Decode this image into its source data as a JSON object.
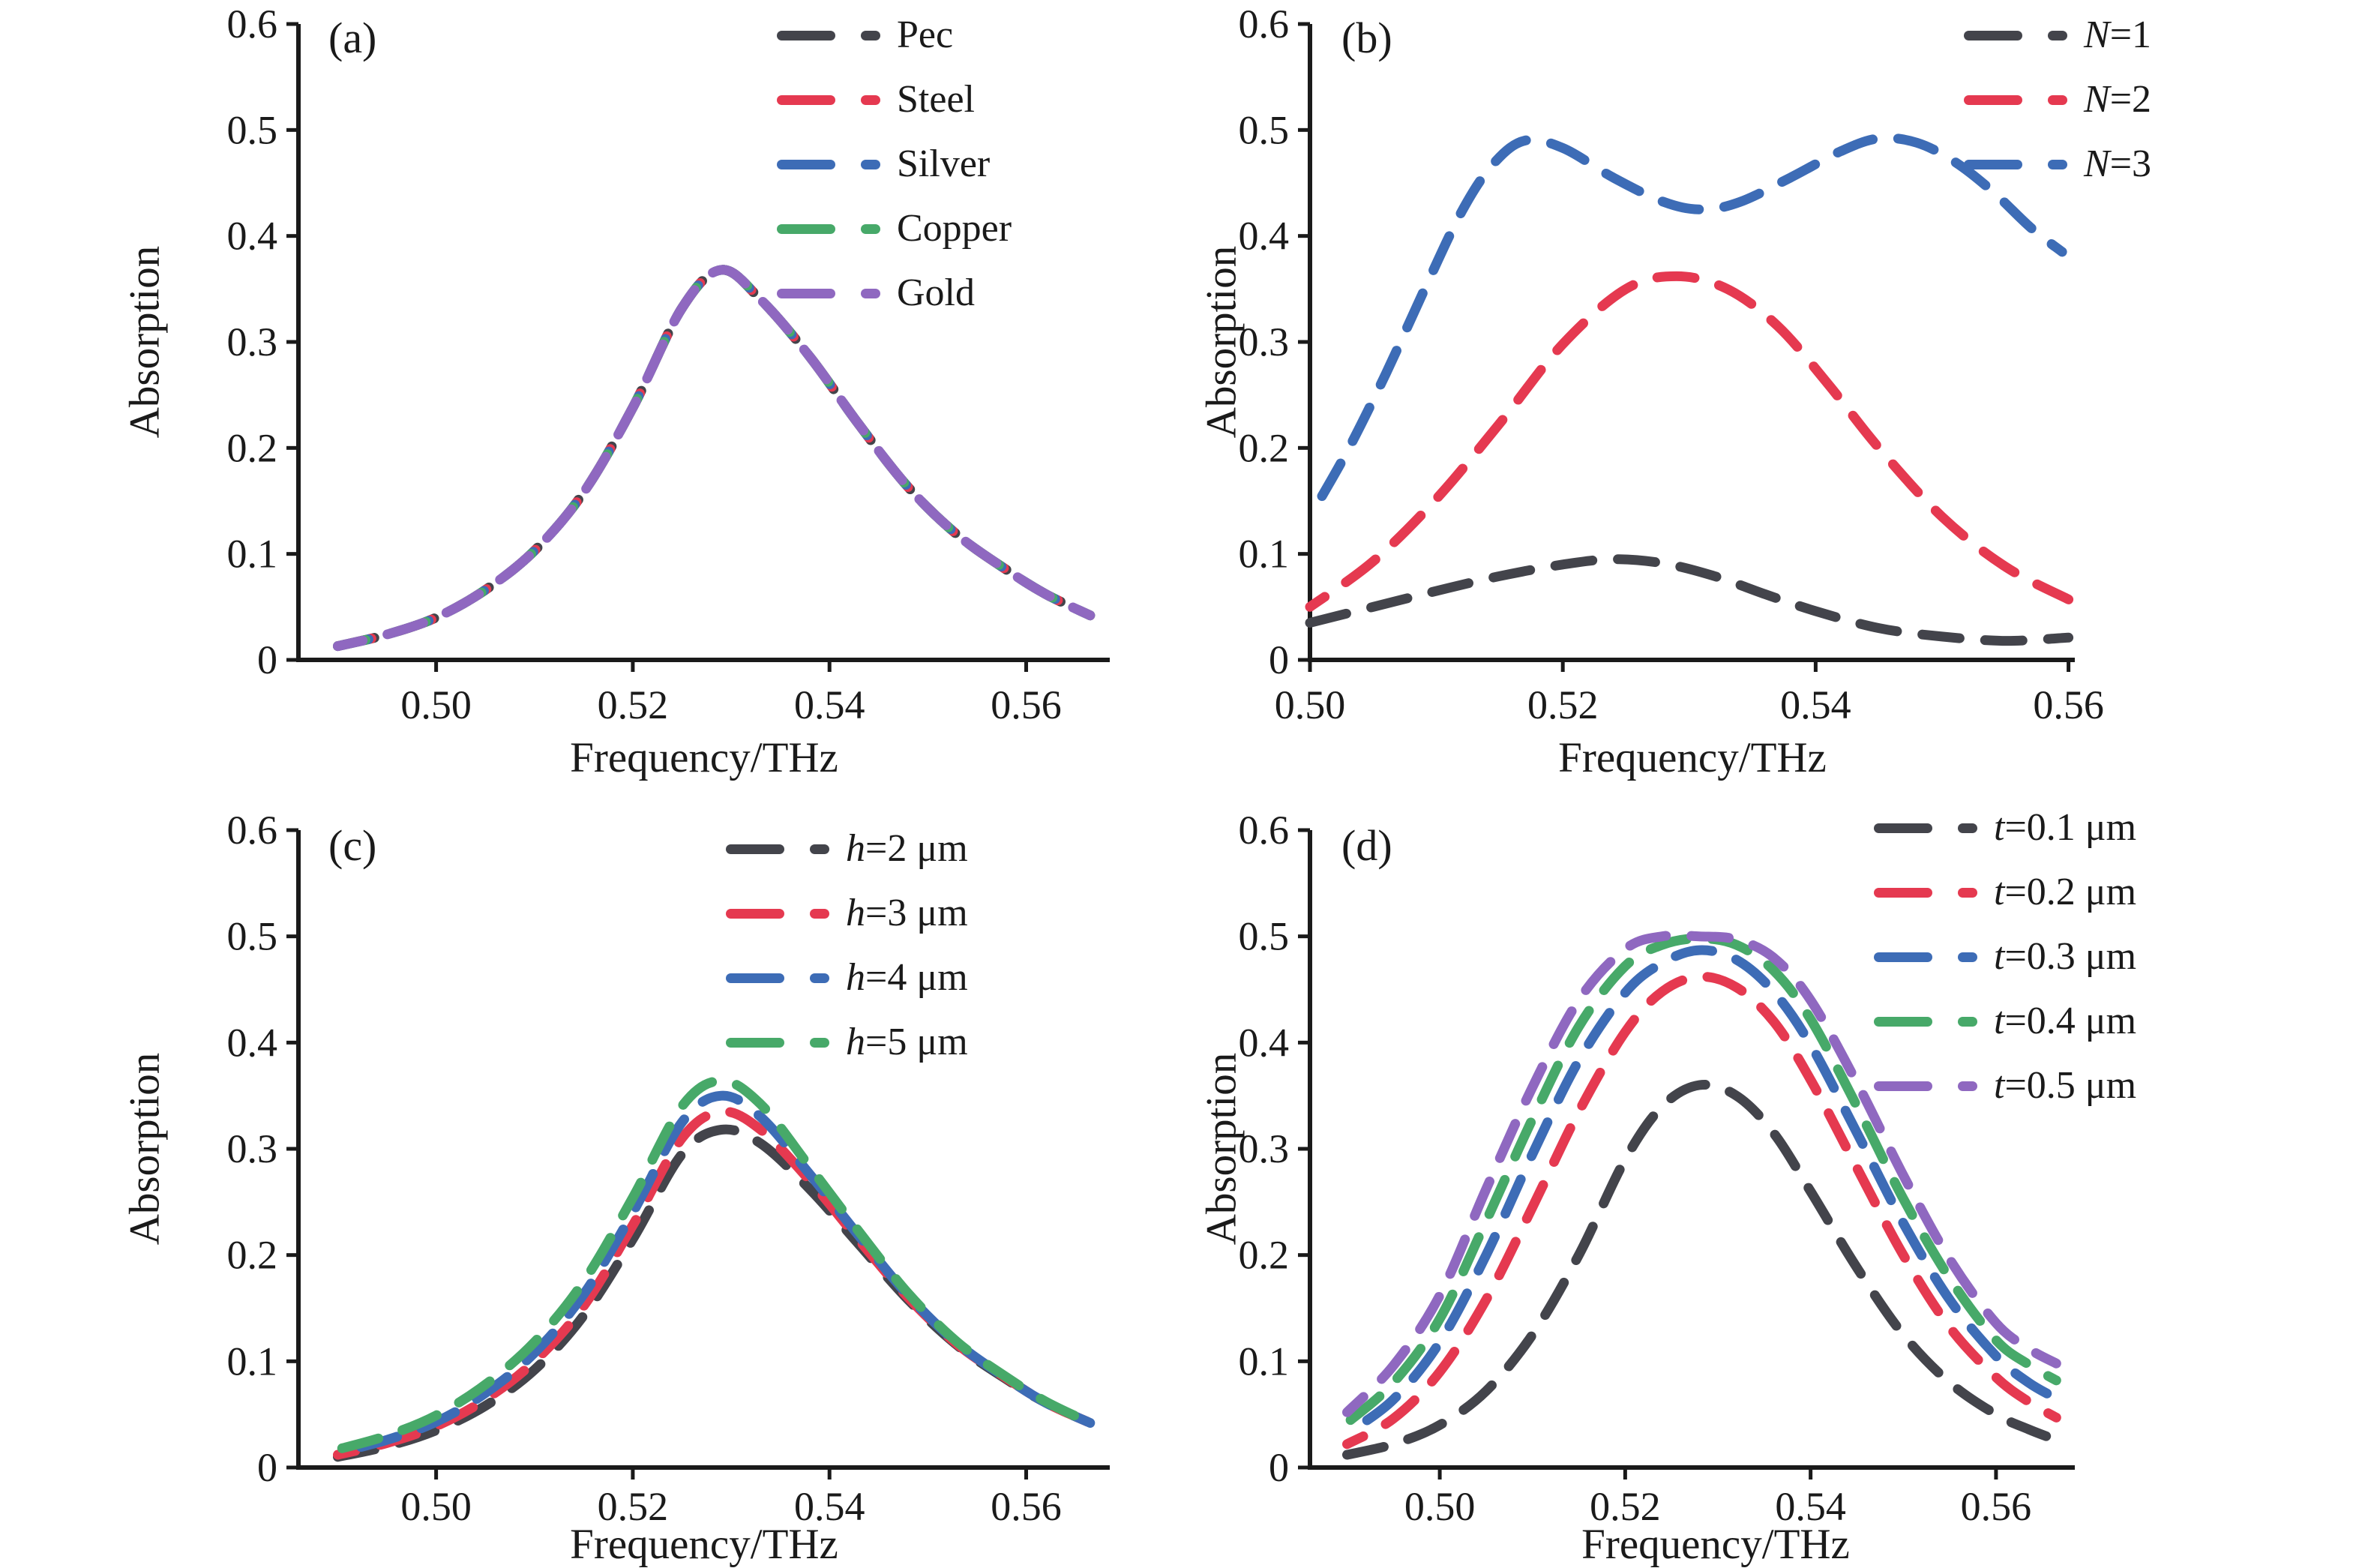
{
  "figure": {
    "background": "#ffffff",
    "text_color": "#1a1a1a",
    "axis_color": "#1a1a1a"
  },
  "chart_data": [
    {
      "id": "a",
      "panel_label": "(a)",
      "type": "line",
      "xlabel": "Frequency/THz",
      "ylabel": "Absorption",
      "xlim": [
        0.486,
        0.5685
      ],
      "ylim": [
        0,
        0.6
      ],
      "grid": false,
      "legend_position": "top-right",
      "xticks": [
        {
          "v": 0.5,
          "label": "0.50"
        },
        {
          "v": 0.52,
          "label": "0.52"
        },
        {
          "v": 0.54,
          "label": "0.54"
        },
        {
          "v": 0.56,
          "label": "0.56"
        }
      ],
      "yticks": [
        {
          "v": 0.0,
          "label": "0"
        },
        {
          "v": 0.1,
          "label": "0.1"
        },
        {
          "v": 0.2,
          "label": "0.2"
        },
        {
          "v": 0.3,
          "label": "0.3"
        },
        {
          "v": 0.4,
          "label": "0.4"
        },
        {
          "v": 0.5,
          "label": "0.5"
        },
        {
          "v": 0.6,
          "label": "0.6"
        }
      ],
      "x": [
        0.49,
        0.495,
        0.5,
        0.505,
        0.51,
        0.515,
        0.52,
        0.525,
        0.529,
        0.533,
        0.538,
        0.543,
        0.548,
        0.553,
        0.558,
        0.562,
        0.5665
      ],
      "y_common": [
        0.013,
        0.024,
        0.04,
        0.066,
        0.103,
        0.158,
        0.238,
        0.332,
        0.368,
        0.34,
        0.286,
        0.222,
        0.163,
        0.118,
        0.085,
        0.062,
        0.042
      ],
      "note": "All five metal curves coincide (identical absorption spectrum)",
      "series": [
        {
          "var": "",
          "rest": "Pec",
          "color": "#43444b",
          "y": "common"
        },
        {
          "var": "",
          "rest": "Steel",
          "color": "#e53950",
          "y": "common"
        },
        {
          "var": "",
          "rest": "Silver",
          "color": "#3d6cb6",
          "y": "common"
        },
        {
          "var": "",
          "rest": "Copper",
          "color": "#47a969",
          "y": "common"
        },
        {
          "var": "",
          "rest": "Gold",
          "color": "#8f68c0",
          "y": "common"
        }
      ]
    },
    {
      "id": "b",
      "panel_label": "(b)",
      "type": "line",
      "xlabel": "Frequency/THz",
      "ylabel": "Absorption",
      "xlim": [
        0.5,
        0.5605
      ],
      "ylim": [
        0,
        0.6
      ],
      "grid": false,
      "legend_position": "top-right",
      "xticks": [
        {
          "v": 0.5,
          "label": "0.50"
        },
        {
          "v": 0.52,
          "label": "0.52"
        },
        {
          "v": 0.54,
          "label": "0.54"
        },
        {
          "v": 0.56,
          "label": "0.56"
        }
      ],
      "yticks": [
        {
          "v": 0.0,
          "label": "0"
        },
        {
          "v": 0.1,
          "label": "0.1"
        },
        {
          "v": 0.2,
          "label": "0.2"
        },
        {
          "v": 0.3,
          "label": "0.3"
        },
        {
          "v": 0.4,
          "label": "0.4"
        },
        {
          "v": 0.5,
          "label": "0.5"
        },
        {
          "v": 0.6,
          "label": "0.6"
        }
      ],
      "series": [
        {
          "var": "N",
          "rest": "=1",
          "color": "#43444b",
          "x": [
            0.5,
            0.505,
            0.51,
            0.515,
            0.52,
            0.524,
            0.528,
            0.532,
            0.536,
            0.54,
            0.545,
            0.55,
            0.555,
            0.56
          ],
          "y": [
            0.035,
            0.05,
            0.065,
            0.079,
            0.09,
            0.095,
            0.091,
            0.079,
            0.062,
            0.046,
            0.03,
            0.022,
            0.018,
            0.021
          ]
        },
        {
          "var": "N",
          "rest": "=2",
          "color": "#e53950",
          "x": [
            0.5,
            0.505,
            0.51,
            0.515,
            0.52,
            0.525,
            0.529,
            0.533,
            0.537,
            0.541,
            0.545,
            0.55,
            0.555,
            0.56
          ],
          "y": [
            0.05,
            0.093,
            0.152,
            0.223,
            0.298,
            0.35,
            0.362,
            0.35,
            0.315,
            0.26,
            0.2,
            0.135,
            0.088,
            0.057
          ]
        },
        {
          "var": "N",
          "rest": "=3",
          "color": "#3d6cb6",
          "x": [
            0.5,
            0.503,
            0.506,
            0.509,
            0.512,
            0.5145,
            0.517,
            0.52,
            0.524,
            0.528,
            0.531,
            0.534,
            0.538,
            0.542,
            0.545,
            0.548,
            0.551,
            0.554,
            0.557,
            0.5595
          ],
          "y": [
            0.135,
            0.198,
            0.27,
            0.348,
            0.423,
            0.468,
            0.49,
            0.483,
            0.455,
            0.432,
            0.425,
            0.432,
            0.455,
            0.48,
            0.492,
            0.488,
            0.47,
            0.442,
            0.408,
            0.385
          ]
        }
      ]
    },
    {
      "id": "c",
      "panel_label": "(c)",
      "type": "line",
      "xlabel": "Frequency/THz",
      "ylabel": "Absorption",
      "xlim": [
        0.486,
        0.5685
      ],
      "ylim": [
        0,
        0.6
      ],
      "grid": false,
      "legend_position": "top-right",
      "xticks": [
        {
          "v": 0.5,
          "label": "0.50"
        },
        {
          "v": 0.52,
          "label": "0.52"
        },
        {
          "v": 0.54,
          "label": "0.54"
        },
        {
          "v": 0.56,
          "label": "0.56"
        }
      ],
      "yticks": [
        {
          "v": 0.0,
          "label": "0"
        },
        {
          "v": 0.1,
          "label": "0.1"
        },
        {
          "v": 0.2,
          "label": "0.2"
        },
        {
          "v": 0.3,
          "label": "0.3"
        },
        {
          "v": 0.4,
          "label": "0.4"
        },
        {
          "v": 0.5,
          "label": "0.5"
        },
        {
          "v": 0.6,
          "label": "0.6"
        }
      ],
      "x": [
        0.49,
        0.495,
        0.5,
        0.505,
        0.51,
        0.515,
        0.52,
        0.525,
        0.529,
        0.533,
        0.538,
        0.543,
        0.548,
        0.553,
        0.558,
        0.562,
        0.5665
      ],
      "series": [
        {
          "var": "h",
          "rest": "=2 μm",
          "color": "#43444b",
          "y": [
            0.01,
            0.02,
            0.035,
            0.058,
            0.092,
            0.143,
            0.215,
            0.295,
            0.318,
            0.305,
            0.262,
            0.21,
            0.158,
            0.115,
            0.083,
            0.061,
            0.042
          ]
        },
        {
          "var": "h",
          "rest": "=3 μm",
          "color": "#e53950",
          "y": [
            0.012,
            0.023,
            0.039,
            0.064,
            0.1,
            0.152,
            0.228,
            0.31,
            0.335,
            0.318,
            0.27,
            0.214,
            0.16,
            0.116,
            0.084,
            0.061,
            0.042
          ]
        },
        {
          "var": "h",
          "rest": "=4 μm",
          "color": "#3d6cb6",
          "y": [
            0.014,
            0.026,
            0.043,
            0.07,
            0.108,
            0.163,
            0.24,
            0.325,
            0.35,
            0.33,
            0.276,
            0.218,
            0.162,
            0.117,
            0.084,
            0.061,
            0.042
          ]
        },
        {
          "var": "h",
          "rest": "=5 μm",
          "color": "#47a969",
          "y": [
            0.017,
            0.03,
            0.049,
            0.078,
            0.118,
            0.175,
            0.254,
            0.34,
            0.364,
            0.342,
            0.283,
            0.222,
            0.164,
            0.118,
            0.085,
            0.062,
            0.042
          ]
        }
      ]
    },
    {
      "id": "d",
      "panel_label": "(d)",
      "type": "line",
      "xlabel": "Frequency/THz",
      "ylabel": "Absorption",
      "xlim": [
        0.486,
        0.5685
      ],
      "ylim": [
        0,
        0.6
      ],
      "grid": false,
      "legend_position": "top-right",
      "xticks": [
        {
          "v": 0.5,
          "label": "0.50"
        },
        {
          "v": 0.52,
          "label": "0.52"
        },
        {
          "v": 0.54,
          "label": "0.54"
        },
        {
          "v": 0.56,
          "label": "0.56"
        }
      ],
      "yticks": [
        {
          "v": 0.0,
          "label": "0"
        },
        {
          "v": 0.1,
          "label": "0.1"
        },
        {
          "v": 0.2,
          "label": "0.2"
        },
        {
          "v": 0.3,
          "label": "0.3"
        },
        {
          "v": 0.4,
          "label": "0.4"
        },
        {
          "v": 0.5,
          "label": "0.5"
        },
        {
          "v": 0.6,
          "label": "0.6"
        }
      ],
      "x": [
        0.49,
        0.495,
        0.5,
        0.505,
        0.51,
        0.515,
        0.52,
        0.524,
        0.528,
        0.532,
        0.536,
        0.54,
        0.545,
        0.55,
        0.555,
        0.56,
        0.5635,
        0.5665
      ],
      "series": [
        {
          "var": "t",
          "rest": "=0.1 μm",
          "color": "#43444b",
          "y": [
            0.012,
            0.022,
            0.04,
            0.072,
            0.125,
            0.2,
            0.29,
            0.34,
            0.36,
            0.35,
            0.315,
            0.26,
            0.188,
            0.125,
            0.08,
            0.05,
            0.036,
            0.026
          ]
        },
        {
          "var": "t",
          "rest": "=0.2 μm",
          "color": "#e53950",
          "y": [
            0.022,
            0.046,
            0.09,
            0.158,
            0.245,
            0.335,
            0.41,
            0.448,
            0.462,
            0.452,
            0.42,
            0.365,
            0.282,
            0.2,
            0.132,
            0.085,
            0.062,
            0.047
          ]
        },
        {
          "var": "t",
          "rest": "=0.3 μm",
          "color": "#3d6cb6",
          "y": [
            0.032,
            0.064,
            0.118,
            0.2,
            0.295,
            0.383,
            0.447,
            0.475,
            0.487,
            0.478,
            0.448,
            0.398,
            0.315,
            0.23,
            0.158,
            0.105,
            0.08,
            0.065
          ]
        },
        {
          "var": "t",
          "rest": "=0.4 μm",
          "color": "#47a969",
          "y": [
            0.042,
            0.08,
            0.14,
            0.232,
            0.328,
            0.415,
            0.472,
            0.492,
            0.498,
            0.492,
            0.468,
            0.422,
            0.34,
            0.253,
            0.178,
            0.12,
            0.097,
            0.082
          ]
        },
        {
          "var": "t",
          "rest": "=0.5 μm",
          "color": "#8f68c0",
          "y": [
            0.052,
            0.096,
            0.162,
            0.262,
            0.358,
            0.44,
            0.488,
            0.5,
            0.5,
            0.497,
            0.48,
            0.44,
            0.362,
            0.275,
            0.196,
            0.136,
            0.112,
            0.098
          ]
        }
      ]
    }
  ]
}
